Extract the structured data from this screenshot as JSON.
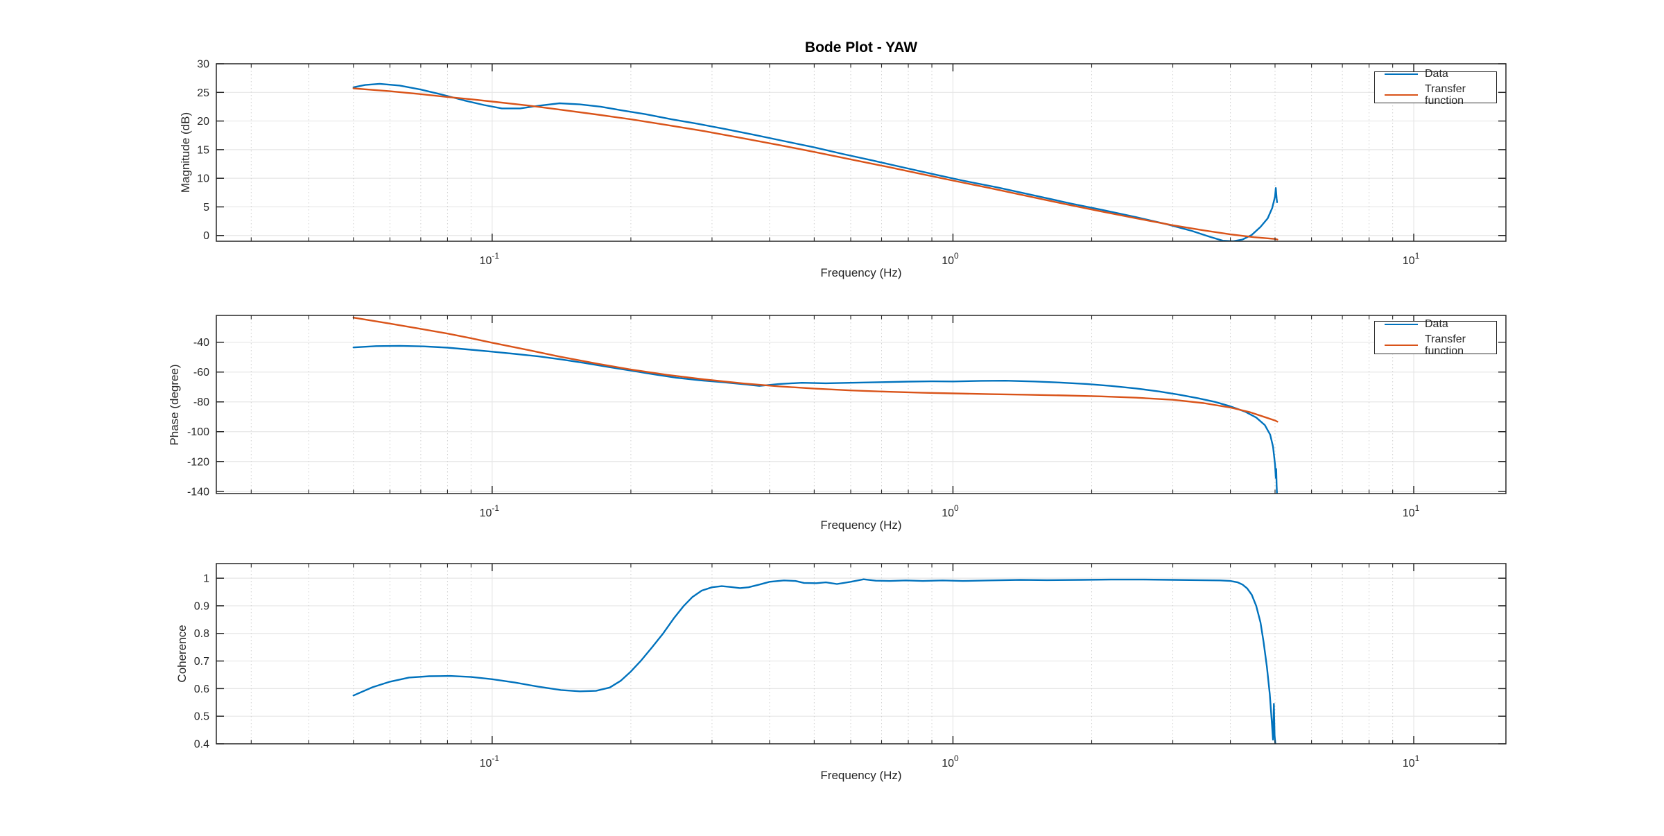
{
  "figure": {
    "background": "#ffffff"
  },
  "colors": {
    "data_line": "#0072BD",
    "transfer_line": "#D95319",
    "grid_major": "#e6e6e6",
    "grid_minor": "#cfcfcf",
    "axis": "#262626",
    "tick_text": "#262626"
  },
  "chart_data": [
    {
      "id": "magnitude",
      "type": "line",
      "title": "Bode Plot - YAW",
      "xlabel": "Frequency (Hz)",
      "ylabel": "Magnitude (dB)",
      "xscale": "log",
      "xlim": [
        0.0252,
        15.85
      ],
      "ylim": [
        -1,
        30
      ],
      "grid": "on",
      "minor_x_grid": "on",
      "legend_position": "northeast",
      "y_ticks": [
        {
          "v": 0,
          "label": "0"
        },
        {
          "v": 5,
          "label": "5"
        },
        {
          "v": 10,
          "label": "10"
        },
        {
          "v": 15,
          "label": "15"
        },
        {
          "v": 20,
          "label": "20"
        },
        {
          "v": 25,
          "label": "25"
        },
        {
          "v": 30,
          "label": "30"
        }
      ],
      "x_ticks": [
        {
          "v": 0.1,
          "mantissa": "10",
          "exp": "-1"
        },
        {
          "v": 1,
          "mantissa": "10",
          "exp": "0"
        },
        {
          "v": 10,
          "mantissa": "10",
          "exp": "1"
        }
      ],
      "series": [
        {
          "name": "Data",
          "color": "#0072BD",
          "points": [
            [
              0.05,
              25.9
            ],
            [
              0.053,
              26.3
            ],
            [
              0.057,
              26.5
            ],
            [
              0.063,
              26.2
            ],
            [
              0.07,
              25.5
            ],
            [
              0.078,
              24.6
            ],
            [
              0.087,
              23.6
            ],
            [
              0.096,
              22.8
            ],
            [
              0.105,
              22.2
            ],
            [
              0.115,
              22.2
            ],
            [
              0.127,
              22.7
            ],
            [
              0.14,
              23.1
            ],
            [
              0.155,
              22.9
            ],
            [
              0.172,
              22.5
            ],
            [
              0.19,
              21.9
            ],
            [
              0.215,
              21.2
            ],
            [
              0.245,
              20.3
            ],
            [
              0.28,
              19.5
            ],
            [
              0.32,
              18.6
            ],
            [
              0.37,
              17.6
            ],
            [
              0.43,
              16.5
            ],
            [
              0.5,
              15.4
            ],
            [
              0.58,
              14.2
            ],
            [
              0.67,
              13.1
            ],
            [
              0.78,
              11.9
            ],
            [
              0.92,
              10.6
            ],
            [
              1.05,
              9.6
            ],
            [
              1.25,
              8.4
            ],
            [
              1.5,
              7.0
            ],
            [
              1.8,
              5.6
            ],
            [
              2.1,
              4.5
            ],
            [
              2.5,
              3.2
            ],
            [
              2.9,
              2.0
            ],
            [
              3.3,
              0.8
            ],
            [
              3.6,
              -0.2
            ],
            [
              3.85,
              -0.9
            ],
            [
              4.05,
              -1.0
            ],
            [
              4.25,
              -0.7
            ],
            [
              4.45,
              0.1
            ],
            [
              4.65,
              1.5
            ],
            [
              4.82,
              3.0
            ],
            [
              4.93,
              4.8
            ],
            [
              5.0,
              6.8
            ],
            [
              5.02,
              8.3
            ],
            [
              5.04,
              6.5
            ],
            [
              5.05,
              5.8
            ]
          ]
        },
        {
          "name": "Transfer function",
          "color": "#D95319",
          "points": [
            [
              0.05,
              25.7
            ],
            [
              0.06,
              25.2
            ],
            [
              0.07,
              24.7
            ],
            [
              0.08,
              24.2
            ],
            [
              0.09,
              23.8
            ],
            [
              0.1,
              23.4
            ],
            [
              0.12,
              22.7
            ],
            [
              0.14,
              22.0
            ],
            [
              0.17,
              21.1
            ],
            [
              0.2,
              20.3
            ],
            [
              0.24,
              19.3
            ],
            [
              0.29,
              18.2
            ],
            [
              0.35,
              17.0
            ],
            [
              0.42,
              15.8
            ],
            [
              0.5,
              14.6
            ],
            [
              0.6,
              13.3
            ],
            [
              0.72,
              12.0
            ],
            [
              0.86,
              10.7
            ],
            [
              1.0,
              9.6
            ],
            [
              1.2,
              8.3
            ],
            [
              1.45,
              6.9
            ],
            [
              1.75,
              5.5
            ],
            [
              2.1,
              4.2
            ],
            [
              2.5,
              3.0
            ],
            [
              3.0,
              1.8
            ],
            [
              3.5,
              0.9
            ],
            [
              4.0,
              0.2
            ],
            [
              4.5,
              -0.3
            ],
            [
              5.0,
              -0.6
            ],
            [
              5.06,
              -0.7
            ]
          ]
        }
      ]
    },
    {
      "id": "phase",
      "type": "line",
      "title": "",
      "xlabel": "Frequency (Hz)",
      "ylabel": "Phase (degree)",
      "xscale": "log",
      "xlim": [
        0.0252,
        15.85
      ],
      "ylim": [
        -141.5,
        -22
      ],
      "grid": "on",
      "minor_x_grid": "on",
      "legend_position": "northeast",
      "y_ticks": [
        {
          "v": -140,
          "label": "-140"
        },
        {
          "v": -120,
          "label": "-120"
        },
        {
          "v": -100,
          "label": "-100"
        },
        {
          "v": -80,
          "label": "-80"
        },
        {
          "v": -60,
          "label": "-60"
        },
        {
          "v": -40,
          "label": "-40"
        }
      ],
      "x_ticks": [
        {
          "v": 0.1,
          "mantissa": "10",
          "exp": "-1"
        },
        {
          "v": 1,
          "mantissa": "10",
          "exp": "0"
        },
        {
          "v": 10,
          "mantissa": "10",
          "exp": "1"
        }
      ],
      "series": [
        {
          "name": "Data",
          "color": "#0072BD",
          "points": [
            [
              0.05,
              -43.5
            ],
            [
              0.056,
              -42.6
            ],
            [
              0.063,
              -42.4
            ],
            [
              0.071,
              -42.8
            ],
            [
              0.08,
              -43.6
            ],
            [
              0.09,
              -45.0
            ],
            [
              0.1,
              -46.3
            ],
            [
              0.112,
              -47.8
            ],
            [
              0.126,
              -49.5
            ],
            [
              0.141,
              -51.5
            ],
            [
              0.158,
              -53.8
            ],
            [
              0.178,
              -56.5
            ],
            [
              0.2,
              -59.0
            ],
            [
              0.224,
              -61.5
            ],
            [
              0.251,
              -63.8
            ],
            [
              0.282,
              -65.5
            ],
            [
              0.316,
              -66.8
            ],
            [
              0.355,
              -68.3
            ],
            [
              0.38,
              -69.3
            ],
            [
              0.42,
              -68.0
            ],
            [
              0.47,
              -67.2
            ],
            [
              0.53,
              -67.5
            ],
            [
              0.6,
              -67.2
            ],
            [
              0.7,
              -66.8
            ],
            [
              0.8,
              -66.4
            ],
            [
              0.9,
              -66.2
            ],
            [
              1.0,
              -66.3
            ],
            [
              1.15,
              -65.9
            ],
            [
              1.3,
              -65.8
            ],
            [
              1.5,
              -66.3
            ],
            [
              1.7,
              -67.0
            ],
            [
              1.95,
              -68.0
            ],
            [
              2.2,
              -69.3
            ],
            [
              2.5,
              -71.0
            ],
            [
              2.8,
              -73.0
            ],
            [
              3.1,
              -75.2
            ],
            [
              3.4,
              -77.5
            ],
            [
              3.7,
              -80.0
            ],
            [
              4.0,
              -83.0
            ],
            [
              4.3,
              -86.5
            ],
            [
              4.55,
              -90.5
            ],
            [
              4.75,
              -95.5
            ],
            [
              4.88,
              -102.0
            ],
            [
              4.95,
              -110.0
            ],
            [
              5.0,
              -122.0
            ],
            [
              5.02,
              -131.0
            ],
            [
              5.03,
              -125.0
            ],
            [
              5.04,
              -136.0
            ],
            [
              5.05,
              -143.0
            ]
          ]
        },
        {
          "name": "Transfer function",
          "color": "#D95319",
          "points": [
            [
              0.05,
              -23.5
            ],
            [
              0.06,
              -27.5
            ],
            [
              0.07,
              -31.0
            ],
            [
              0.08,
              -34.2
            ],
            [
              0.09,
              -37.3
            ],
            [
              0.1,
              -40.3
            ],
            [
              0.12,
              -45.3
            ],
            [
              0.14,
              -49.6
            ],
            [
              0.17,
              -54.5
            ],
            [
              0.2,
              -58.3
            ],
            [
              0.24,
              -61.9
            ],
            [
              0.29,
              -65.0
            ],
            [
              0.35,
              -67.6
            ],
            [
              0.42,
              -69.6
            ],
            [
              0.5,
              -71.1
            ],
            [
              0.6,
              -72.3
            ],
            [
              0.72,
              -73.2
            ],
            [
              0.86,
              -73.9
            ],
            [
              1.0,
              -74.3
            ],
            [
              1.2,
              -74.8
            ],
            [
              1.45,
              -75.2
            ],
            [
              1.75,
              -75.7
            ],
            [
              2.1,
              -76.3
            ],
            [
              2.5,
              -77.2
            ],
            [
              3.0,
              -78.6
            ],
            [
              3.5,
              -80.8
            ],
            [
              4.0,
              -83.8
            ],
            [
              4.4,
              -86.8
            ],
            [
              4.75,
              -90.2
            ],
            [
              5.0,
              -92.5
            ],
            [
              5.06,
              -93.3
            ]
          ]
        }
      ]
    },
    {
      "id": "coherence",
      "type": "line",
      "title": "",
      "xlabel": "Frequency (Hz)",
      "ylabel": "Coherence",
      "xscale": "log",
      "xlim": [
        0.0252,
        15.85
      ],
      "ylim": [
        0.4,
        1.053
      ],
      "grid": "on",
      "minor_x_grid": "on",
      "legend_position": "none",
      "y_ticks": [
        {
          "v": 0.4,
          "label": "0.4"
        },
        {
          "v": 0.5,
          "label": "0.5"
        },
        {
          "v": 0.6,
          "label": "0.6"
        },
        {
          "v": 0.7,
          "label": "0.7"
        },
        {
          "v": 0.8,
          "label": "0.8"
        },
        {
          "v": 0.9,
          "label": "0.9"
        },
        {
          "v": 1,
          "label": "1"
        }
      ],
      "x_ticks": [
        {
          "v": 0.1,
          "mantissa": "10",
          "exp": "-1"
        },
        {
          "v": 1,
          "mantissa": "10",
          "exp": "0"
        },
        {
          "v": 10,
          "mantissa": "10",
          "exp": "1"
        }
      ],
      "series": [
        {
          "name": "Data",
          "color": "#0072BD",
          "points": [
            [
              0.05,
              0.575
            ],
            [
              0.055,
              0.605
            ],
            [
              0.06,
              0.625
            ],
            [
              0.066,
              0.64
            ],
            [
              0.073,
              0.645
            ],
            [
              0.081,
              0.646
            ],
            [
              0.09,
              0.642
            ],
            [
              0.1,
              0.634
            ],
            [
              0.112,
              0.622
            ],
            [
              0.126,
              0.607
            ],
            [
              0.141,
              0.595
            ],
            [
              0.155,
              0.59
            ],
            [
              0.168,
              0.592
            ],
            [
              0.18,
              0.604
            ],
            [
              0.19,
              0.628
            ],
            [
              0.2,
              0.662
            ],
            [
              0.21,
              0.7
            ],
            [
              0.222,
              0.748
            ],
            [
              0.235,
              0.8
            ],
            [
              0.248,
              0.855
            ],
            [
              0.26,
              0.898
            ],
            [
              0.272,
              0.932
            ],
            [
              0.285,
              0.955
            ],
            [
              0.3,
              0.967
            ],
            [
              0.315,
              0.971
            ],
            [
              0.33,
              0.968
            ],
            [
              0.345,
              0.964
            ],
            [
              0.36,
              0.967
            ],
            [
              0.38,
              0.977
            ],
            [
              0.4,
              0.987
            ],
            [
              0.43,
              0.992
            ],
            [
              0.455,
              0.99
            ],
            [
              0.475,
              0.983
            ],
            [
              0.505,
              0.982
            ],
            [
              0.53,
              0.985
            ],
            [
              0.56,
              0.979
            ],
            [
              0.6,
              0.987
            ],
            [
              0.64,
              0.996
            ],
            [
              0.68,
              0.991
            ],
            [
              0.73,
              0.99
            ],
            [
              0.79,
              0.992
            ],
            [
              0.86,
              0.99
            ],
            [
              0.95,
              0.992
            ],
            [
              1.05,
              0.99
            ],
            [
              1.2,
              0.992
            ],
            [
              1.4,
              0.994
            ],
            [
              1.6,
              0.993
            ],
            [
              1.9,
              0.994
            ],
            [
              2.2,
              0.995
            ],
            [
              2.6,
              0.995
            ],
            [
              3.0,
              0.994
            ],
            [
              3.4,
              0.993
            ],
            [
              3.8,
              0.992
            ],
            [
              4.0,
              0.99
            ],
            [
              4.15,
              0.985
            ],
            [
              4.25,
              0.977
            ],
            [
              4.35,
              0.963
            ],
            [
              4.45,
              0.94
            ],
            [
              4.55,
              0.9
            ],
            [
              4.65,
              0.84
            ],
            [
              4.72,
              0.77
            ],
            [
              4.8,
              0.68
            ],
            [
              4.87,
              0.58
            ],
            [
              4.92,
              0.48
            ],
            [
              4.95,
              0.415
            ],
            [
              4.97,
              0.545
            ],
            [
              4.99,
              0.43
            ],
            [
              5.01,
              0.395
            ]
          ]
        }
      ]
    }
  ]
}
